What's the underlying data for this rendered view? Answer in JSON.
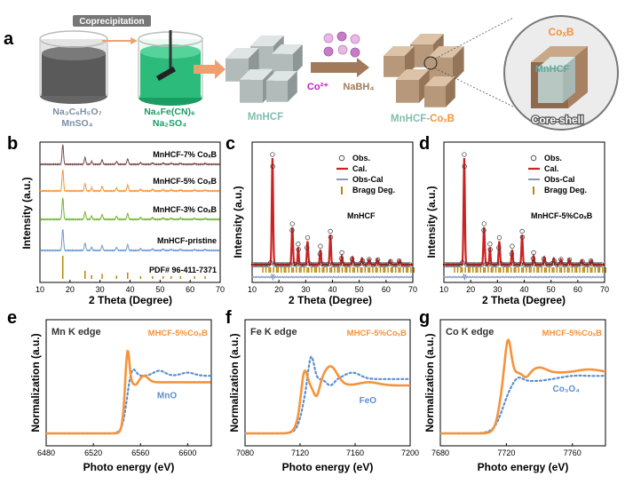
{
  "panel_a": {
    "label": "a",
    "coprecipitation": "Coprecipitation",
    "reagent1_line1": "Na₃C₆H₅O₇",
    "reagent1_line2": "MnSO₄",
    "reagent2_line1": "Na₄Fe(CN)₆",
    "reagent2_line2": "Na₂SO₄",
    "mnhcf": "MnHCF",
    "co2": "Co²⁺",
    "nabh4": "NaBH₄",
    "product_prefix": "MnHCF-",
    "product_suffix": "CoₓB",
    "shell_label": "CoₓB",
    "core_label": "MnHCF",
    "core_shell": "Core-shell"
  },
  "panel_b": {
    "label": "b",
    "ylabel": "Intensity (a.u.)",
    "xlabel": "2 Theta (Degree)",
    "xticks": [
      "10",
      "20",
      "30",
      "40",
      "50",
      "60",
      "70"
    ],
    "traces": [
      {
        "name": "MnHCF-7% CoₓB",
        "color": "#7a4a4a"
      },
      {
        "name": "MnHCF-5% CoₓB",
        "color": "#f5933a"
      },
      {
        "name": "MnHCF-3% CoₓB",
        "color": "#6db532"
      },
      {
        "name": "MnHCF-pristine",
        "color": "#6a9ad6"
      },
      {
        "name": "PDF# 96-411-7371",
        "color": "#b8860b"
      }
    ]
  },
  "panel_c": {
    "label": "c",
    "ylabel": "Intensity (a.u.)",
    "xlabel": "2 Theta (Degree)",
    "xticks": [
      "10",
      "20",
      "30",
      "40",
      "50",
      "60",
      "70"
    ],
    "sample": "MnHCF",
    "legend": [
      "Obs.",
      "Cal.",
      "Obs-Cal",
      "Bragg Deg."
    ]
  },
  "panel_d": {
    "label": "d",
    "ylabel": "Intensity (a.u.)",
    "xlabel": "2 Theta (Degree)",
    "xticks": [
      "10",
      "20",
      "30",
      "40",
      "50",
      "60",
      "70"
    ],
    "sample": "MnHCF-5%CoₓB",
    "legend": [
      "Obs.",
      "Cal.",
      "Obs-Cal",
      "Bragg Deg."
    ]
  },
  "panel_e": {
    "label": "e",
    "edge": "Mn K edge",
    "sample": "MHCF-5%CoₓB",
    "ref": "MnO",
    "ylabel": "Normalization  (a.u.)",
    "xlabel": "Photo energy (eV)",
    "xticks": [
      "6480",
      "6520",
      "6560",
      "6600"
    ]
  },
  "panel_f": {
    "label": "f",
    "edge": "Fe K edge",
    "sample": "MHCF-5%CoₓB",
    "ref": "FeO",
    "ylabel": "Normalization  (a.u.)",
    "xlabel": "Photo energy (eV)",
    "xticks": [
      "7080",
      "7120",
      "7160",
      "7200"
    ]
  },
  "panel_g": {
    "label": "g",
    "edge": "Co K edge",
    "sample": "MHCF-5%CoₓB",
    "ref": "Co₃O₄",
    "ylabel": "Normalization  (a.u.)",
    "xlabel": "Photo energy (eV)",
    "xticks": [
      "7680",
      "7720",
      "7760"
    ]
  },
  "colors": {
    "orange": "#f5933a",
    "blue_dotted": "#5b8fcf",
    "green": "#22aa66",
    "red": "#cc2222",
    "gray_blue": "#8899bb",
    "bragg": "#b8860b",
    "cube": "#b8bfbf",
    "shell": "#b08a6a"
  }
}
